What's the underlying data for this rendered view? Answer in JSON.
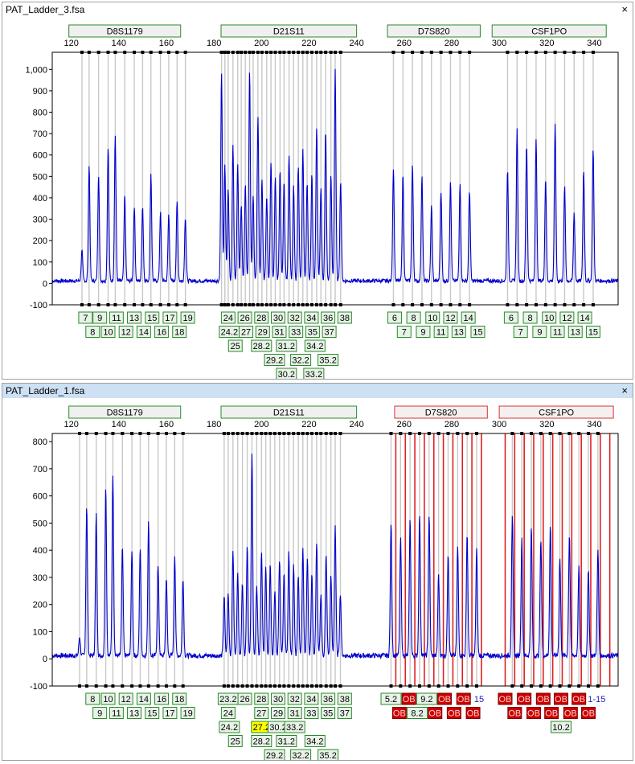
{
  "panels": [
    {
      "title": "PAT_Ladder_3.fsa",
      "active": false,
      "close_label": "×",
      "x_ticks": [
        120,
        140,
        160,
        180,
        200,
        220,
        240,
        260,
        280,
        300,
        320,
        340
      ],
      "y_ticks": [
        -100,
        0,
        100,
        200,
        300,
        400,
        500,
        600,
        700,
        800,
        900,
        1000
      ],
      "y_tick_labels": [
        "-100",
        "0",
        "100",
        "200",
        "300",
        "400",
        "500",
        "600",
        "700",
        "800",
        "900",
        "1,000"
      ],
      "ylim": [
        -100,
        1080
      ],
      "xlim": [
        112,
        350
      ],
      "markers": [
        {
          "label": "D8S1179",
          "start": 119,
          "end": 166,
          "status": "ok"
        },
        {
          "label": "D21S11",
          "start": 183,
          "end": 240,
          "status": "ok"
        },
        {
          "label": "D7S820",
          "start": 253,
          "end": 292,
          "status": "ok"
        },
        {
          "label": "CSF1PO",
          "start": 297,
          "end": 345,
          "status": "ok"
        }
      ],
      "peaks": [
        {
          "x": 124.5,
          "h": 140
        },
        {
          "x": 127.5,
          "h": 540
        },
        {
          "x": 131.5,
          "h": 500
        },
        {
          "x": 135.5,
          "h": 630
        },
        {
          "x": 138.5,
          "h": 680
        },
        {
          "x": 142.5,
          "h": 400
        },
        {
          "x": 146.5,
          "h": 350
        },
        {
          "x": 150,
          "h": 350
        },
        {
          "x": 153.5,
          "h": 500
        },
        {
          "x": 157.5,
          "h": 320
        },
        {
          "x": 161,
          "h": 310
        },
        {
          "x": 164.5,
          "h": 370
        },
        {
          "x": 168,
          "h": 300
        },
        {
          "x": 183.2,
          "h": 980
        },
        {
          "x": 184.6,
          "h": 540
        },
        {
          "x": 186,
          "h": 430
        },
        {
          "x": 188,
          "h": 640
        },
        {
          "x": 190,
          "h": 540
        },
        {
          "x": 191.5,
          "h": 360
        },
        {
          "x": 193.2,
          "h": 450
        },
        {
          "x": 195,
          "h": 980
        },
        {
          "x": 196.5,
          "h": 400
        },
        {
          "x": 198.5,
          "h": 760
        },
        {
          "x": 200.2,
          "h": 470
        },
        {
          "x": 202.2,
          "h": 400
        },
        {
          "x": 204,
          "h": 560
        },
        {
          "x": 205.8,
          "h": 480
        },
        {
          "x": 207.8,
          "h": 520
        },
        {
          "x": 209.5,
          "h": 460
        },
        {
          "x": 211.6,
          "h": 590
        },
        {
          "x": 213.5,
          "h": 440
        },
        {
          "x": 215.5,
          "h": 540
        },
        {
          "x": 217.4,
          "h": 620
        },
        {
          "x": 219.2,
          "h": 460
        },
        {
          "x": 221.2,
          "h": 500
        },
        {
          "x": 223.2,
          "h": 720
        },
        {
          "x": 225,
          "h": 440
        },
        {
          "x": 227,
          "h": 700
        },
        {
          "x": 229.2,
          "h": 500
        },
        {
          "x": 231,
          "h": 990
        },
        {
          "x": 233.3,
          "h": 470
        },
        {
          "x": 255.5,
          "h": 530
        },
        {
          "x": 259.5,
          "h": 500
        },
        {
          "x": 263.5,
          "h": 540
        },
        {
          "x": 267.5,
          "h": 490
        },
        {
          "x": 271.5,
          "h": 350
        },
        {
          "x": 275.5,
          "h": 420
        },
        {
          "x": 279.5,
          "h": 460
        },
        {
          "x": 283.5,
          "h": 460
        },
        {
          "x": 287.5,
          "h": 420
        },
        {
          "x": 303.5,
          "h": 520
        },
        {
          "x": 307.5,
          "h": 710
        },
        {
          "x": 311.5,
          "h": 640
        },
        {
          "x": 315.5,
          "h": 670
        },
        {
          "x": 319.5,
          "h": 480
        },
        {
          "x": 323.5,
          "h": 730
        },
        {
          "x": 327.5,
          "h": 440
        },
        {
          "x": 331.5,
          "h": 320
        },
        {
          "x": 335.5,
          "h": 520
        },
        {
          "x": 339.5,
          "h": 620
        }
      ],
      "allele_rows": [
        [
          {
            "x": 126,
            "t": "7"
          },
          {
            "x": 132,
            "t": "9"
          },
          {
            "x": 139,
            "t": "11"
          },
          {
            "x": 146.5,
            "t": "13"
          },
          {
            "x": 154,
            "t": "15"
          },
          {
            "x": 161.5,
            "t": "17"
          },
          {
            "x": 169,
            "t": "19"
          },
          {
            "x": 186,
            "t": "24"
          },
          {
            "x": 193,
            "t": "26"
          },
          {
            "x": 200,
            "t": "28"
          },
          {
            "x": 207,
            "t": "30"
          },
          {
            "x": 214,
            "t": "32"
          },
          {
            "x": 221,
            "t": "34"
          },
          {
            "x": 228,
            "t": "36"
          },
          {
            "x": 235,
            "t": "38"
          },
          {
            "x": 256,
            "t": "6"
          },
          {
            "x": 264,
            "t": "8"
          },
          {
            "x": 272,
            "t": "10"
          },
          {
            "x": 279.5,
            "t": "12"
          },
          {
            "x": 287,
            "t": "14"
          },
          {
            "x": 305,
            "t": "6"
          },
          {
            "x": 313,
            "t": "8"
          },
          {
            "x": 321,
            "t": "10"
          },
          {
            "x": 328.5,
            "t": "12"
          },
          {
            "x": 336,
            "t": "14"
          }
        ],
        [
          {
            "x": 129,
            "t": "8"
          },
          {
            "x": 135.5,
            "t": "10"
          },
          {
            "x": 143,
            "t": "12"
          },
          {
            "x": 150.5,
            "t": "14"
          },
          {
            "x": 158,
            "t": "16"
          },
          {
            "x": 165.5,
            "t": "18"
          },
          {
            "x": 186.5,
            "t": "24.2"
          },
          {
            "x": 193.5,
            "t": "27"
          },
          {
            "x": 200.5,
            "t": "29"
          },
          {
            "x": 207.5,
            "t": "31"
          },
          {
            "x": 214.5,
            "t": "33"
          },
          {
            "x": 221.5,
            "t": "35"
          },
          {
            "x": 228.5,
            "t": "37"
          },
          {
            "x": 260,
            "t": "7"
          },
          {
            "x": 268,
            "t": "9"
          },
          {
            "x": 275.5,
            "t": "11"
          },
          {
            "x": 283,
            "t": "13"
          },
          {
            "x": 291,
            "t": "15"
          },
          {
            "x": 309,
            "t": "7"
          },
          {
            "x": 317,
            "t": "9"
          },
          {
            "x": 324.5,
            "t": "11"
          },
          {
            "x": 332,
            "t": "13"
          },
          {
            "x": 339.5,
            "t": "15"
          }
        ],
        [
          {
            "x": 189,
            "t": "25"
          },
          {
            "x": 200,
            "t": "28.2"
          },
          {
            "x": 210.5,
            "t": "31.2"
          },
          {
            "x": 222.5,
            "t": "34.2"
          }
        ],
        [
          {
            "x": 205.5,
            "t": "29.2"
          },
          {
            "x": 216.5,
            "t": "32.2"
          },
          {
            "x": 228,
            "t": "35.2"
          }
        ],
        [
          {
            "x": 210.5,
            "t": "30.2"
          },
          {
            "x": 222,
            "t": "33.2"
          }
        ]
      ]
    },
    {
      "title": "PAT_Ladder_1.fsa",
      "active": true,
      "close_label": "×",
      "x_ticks": [
        120,
        140,
        160,
        180,
        200,
        220,
        240,
        260,
        280,
        300,
        320,
        340
      ],
      "y_ticks": [
        -100,
        0,
        100,
        200,
        300,
        400,
        500,
        600,
        700,
        800
      ],
      "y_tick_labels": [
        "-100",
        "0",
        "100",
        "200",
        "300",
        "400",
        "500",
        "600",
        "700",
        "800"
      ],
      "ylim": [
        -100,
        830
      ],
      "xlim": [
        112,
        350
      ],
      "markers": [
        {
          "label": "D8S1179",
          "start": 119,
          "end": 166,
          "status": "ok"
        },
        {
          "label": "D21S11",
          "start": 183,
          "end": 240,
          "status": "ok"
        },
        {
          "label": "D7S820",
          "start": 256,
          "end": 295,
          "status": "ob"
        },
        {
          "label": "CSF1PO",
          "start": 300,
          "end": 348,
          "status": "ob"
        }
      ],
      "red_lines": [
        256.5,
        260.5,
        264.5,
        268.5,
        272.5,
        276.5,
        280.5,
        284.5,
        288.5,
        292.5,
        302.5,
        306.5,
        310.5,
        314.5,
        318.5,
        322.5,
        326.5,
        330.5,
        334.5,
        338.5,
        342.5,
        346.5
      ],
      "peaks": [
        {
          "x": 123.5,
          "h": 70
        },
        {
          "x": 126.5,
          "h": 550
        },
        {
          "x": 130.5,
          "h": 520
        },
        {
          "x": 134.5,
          "h": 620
        },
        {
          "x": 137.5,
          "h": 670
        },
        {
          "x": 141.5,
          "h": 400
        },
        {
          "x": 145.5,
          "h": 390
        },
        {
          "x": 149,
          "h": 400
        },
        {
          "x": 152.5,
          "h": 500
        },
        {
          "x": 156.5,
          "h": 330
        },
        {
          "x": 160,
          "h": 290
        },
        {
          "x": 163.5,
          "h": 370
        },
        {
          "x": 167,
          "h": 290
        },
        {
          "x": 184.3,
          "h": 220
        },
        {
          "x": 186,
          "h": 230
        },
        {
          "x": 188,
          "h": 390
        },
        {
          "x": 190,
          "h": 300
        },
        {
          "x": 192,
          "h": 270
        },
        {
          "x": 194,
          "h": 400
        },
        {
          "x": 196,
          "h": 750
        },
        {
          "x": 198,
          "h": 260
        },
        {
          "x": 200,
          "h": 380
        },
        {
          "x": 201.8,
          "h": 330
        },
        {
          "x": 203.7,
          "h": 340
        },
        {
          "x": 205.6,
          "h": 240
        },
        {
          "x": 207.6,
          "h": 360
        },
        {
          "x": 209.5,
          "h": 300
        },
        {
          "x": 211.5,
          "h": 380
        },
        {
          "x": 213.5,
          "h": 330
        },
        {
          "x": 215.5,
          "h": 300
        },
        {
          "x": 217.4,
          "h": 400
        },
        {
          "x": 219.3,
          "h": 360
        },
        {
          "x": 221.2,
          "h": 300
        },
        {
          "x": 223.2,
          "h": 420
        },
        {
          "x": 225,
          "h": 230
        },
        {
          "x": 227.2,
          "h": 370
        },
        {
          "x": 229.2,
          "h": 300
        },
        {
          "x": 231,
          "h": 480
        },
        {
          "x": 233.2,
          "h": 230
        },
        {
          "x": 254.5,
          "h": 490
        },
        {
          "x": 258.5,
          "h": 430
        },
        {
          "x": 262.5,
          "h": 500
        },
        {
          "x": 266.5,
          "h": 520
        },
        {
          "x": 270.5,
          "h": 520
        },
        {
          "x": 274.5,
          "h": 300
        },
        {
          "x": 278.5,
          "h": 380
        },
        {
          "x": 282.5,
          "h": 400
        },
        {
          "x": 286.5,
          "h": 450
        },
        {
          "x": 290.5,
          "h": 390
        },
        {
          "x": 305.5,
          "h": 510
        },
        {
          "x": 309.5,
          "h": 430
        },
        {
          "x": 313.5,
          "h": 470
        },
        {
          "x": 317.5,
          "h": 430
        },
        {
          "x": 321.5,
          "h": 480
        },
        {
          "x": 325.5,
          "h": 360
        },
        {
          "x": 329.5,
          "h": 450
        },
        {
          "x": 333.5,
          "h": 330
        },
        {
          "x": 337.5,
          "h": 310
        },
        {
          "x": 341.5,
          "h": 390
        }
      ],
      "allele_rows": [
        [
          {
            "x": 129,
            "t": "8"
          },
          {
            "x": 135.5,
            "t": "10"
          },
          {
            "x": 143,
            "t": "12"
          },
          {
            "x": 150.5,
            "t": "14"
          },
          {
            "x": 158,
            "t": "16"
          },
          {
            "x": 165.5,
            "t": "18"
          },
          {
            "x": 186,
            "t": "23.2"
          },
          {
            "x": 193,
            "t": "26"
          },
          {
            "x": 200,
            "t": "28"
          },
          {
            "x": 207,
            "t": "30"
          },
          {
            "x": 214,
            "t": "32"
          },
          {
            "x": 221,
            "t": "34"
          },
          {
            "x": 228,
            "t": "36"
          },
          {
            "x": 235,
            "t": "38"
          },
          {
            "x": 254.5,
            "t": "5.2"
          },
          {
            "x": 262,
            "t": "OB",
            "s": "ob"
          },
          {
            "x": 269.5,
            "t": "9.2"
          },
          {
            "x": 277,
            "t": "OB",
            "s": "ob"
          },
          {
            "x": 285,
            "t": "OB",
            "s": "ob"
          },
          {
            "x": 291.5,
            "t": "15",
            "s": "plain"
          },
          {
            "x": 302.5,
            "t": "OB",
            "s": "ob"
          },
          {
            "x": 310.5,
            "t": "OB",
            "s": "ob"
          },
          {
            "x": 318.5,
            "t": "OB",
            "s": "ob"
          },
          {
            "x": 326,
            "t": "OB",
            "s": "ob"
          },
          {
            "x": 333.5,
            "t": "OB",
            "s": "ob"
          },
          {
            "x": 341,
            "t": "1-15",
            "s": "plain"
          }
        ],
        [
          {
            "x": 132,
            "t": "9"
          },
          {
            "x": 139,
            "t": "11"
          },
          {
            "x": 146.5,
            "t": "13"
          },
          {
            "x": 154,
            "t": "15"
          },
          {
            "x": 161.5,
            "t": "17"
          },
          {
            "x": 169,
            "t": "19"
          },
          {
            "x": 186,
            "t": "24"
          },
          {
            "x": 200,
            "t": "27"
          },
          {
            "x": 207,
            "t": "29"
          },
          {
            "x": 214,
            "t": "31"
          },
          {
            "x": 221,
            "t": "33"
          },
          {
            "x": 228,
            "t": "35"
          },
          {
            "x": 235,
            "t": "37"
          },
          {
            "x": 258,
            "t": "OB",
            "s": "ob"
          },
          {
            "x": 265.5,
            "t": "8.2"
          },
          {
            "x": 273,
            "t": "OB",
            "s": "ob"
          },
          {
            "x": 281,
            "t": "OB",
            "s": "ob"
          },
          {
            "x": 289,
            "t": "OB",
            "s": "ob"
          },
          {
            "x": 306.5,
            "t": "OB",
            "s": "ob"
          },
          {
            "x": 314.5,
            "t": "OB",
            "s": "ob"
          },
          {
            "x": 322,
            "t": "OB",
            "s": "ob"
          },
          {
            "x": 330,
            "t": "OB",
            "s": "ob"
          },
          {
            "x": 337.5,
            "t": "OB",
            "s": "ob"
          }
        ],
        [
          {
            "x": 186.5,
            "t": "24.2"
          },
          {
            "x": 200,
            "t": "27.2",
            "s": "hl"
          },
          {
            "x": 207,
            "t": "30.2"
          },
          {
            "x": 214,
            "t": "33.2"
          },
          {
            "x": 326,
            "t": "10.2"
          }
        ],
        [
          {
            "x": 189,
            "t": "25"
          },
          {
            "x": 200,
            "t": "28.2"
          },
          {
            "x": 210.5,
            "t": "31.2"
          },
          {
            "x": 222.5,
            "t": "34.2"
          }
        ],
        [
          {
            "x": 205.5,
            "t": "29.2"
          },
          {
            "x": 216.5,
            "t": "32.2"
          },
          {
            "x": 228,
            "t": "35.2"
          }
        ]
      ]
    }
  ],
  "colors": {
    "trace": "#0000cc",
    "bin_line": "#c8c8c8",
    "marker_ok_border": "#2a8a2a",
    "marker_ob_border": "#d83030",
    "allele_ok_bg": "#e8f3e8",
    "allele_ob_bg": "#cc0000",
    "allele_hl_bg": "#ffff00",
    "active_title_bg": "#cde0f4",
    "ob_line": "#e02020"
  }
}
